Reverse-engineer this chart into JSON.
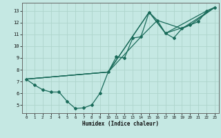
{
  "xlabel": "Humidex (Indice chaleur)",
  "xlim": [
    -0.5,
    23.5
  ],
  "ylim": [
    4.3,
    13.7
  ],
  "xticks": [
    0,
    1,
    2,
    3,
    4,
    5,
    6,
    7,
    8,
    9,
    10,
    11,
    12,
    13,
    14,
    15,
    16,
    17,
    18,
    19,
    20,
    21,
    22,
    23
  ],
  "yticks": [
    5,
    6,
    7,
    8,
    9,
    10,
    11,
    12,
    13
  ],
  "bg_color": "#c5e8e3",
  "grid_color": "#aed4cc",
  "line_color": "#1a6b5a",
  "line1_x": [
    0,
    1,
    2,
    3,
    4,
    5,
    6,
    7,
    8,
    9,
    10,
    11,
    12,
    13,
    14,
    15,
    16,
    17,
    18,
    19,
    20,
    21,
    22,
    23
  ],
  "line1_y": [
    7.2,
    6.7,
    6.3,
    6.1,
    6.1,
    5.3,
    4.7,
    4.75,
    5.0,
    6.0,
    7.8,
    9.1,
    9.0,
    10.7,
    10.8,
    12.9,
    12.2,
    11.1,
    10.7,
    11.5,
    11.8,
    12.1,
    13.0,
    13.3
  ],
  "line2_x": [
    0,
    10,
    14,
    16,
    19,
    23
  ],
  "line2_y": [
    7.2,
    7.8,
    10.8,
    12.2,
    11.5,
    13.3
  ],
  "line3_x": [
    0,
    10,
    15,
    17,
    22,
    23
  ],
  "line3_y": [
    7.2,
    7.8,
    12.9,
    11.1,
    13.0,
    13.3
  ],
  "line4_x": [
    0,
    10,
    15,
    17,
    20,
    23
  ],
  "line4_y": [
    7.2,
    7.8,
    12.9,
    11.1,
    11.8,
    13.3
  ]
}
